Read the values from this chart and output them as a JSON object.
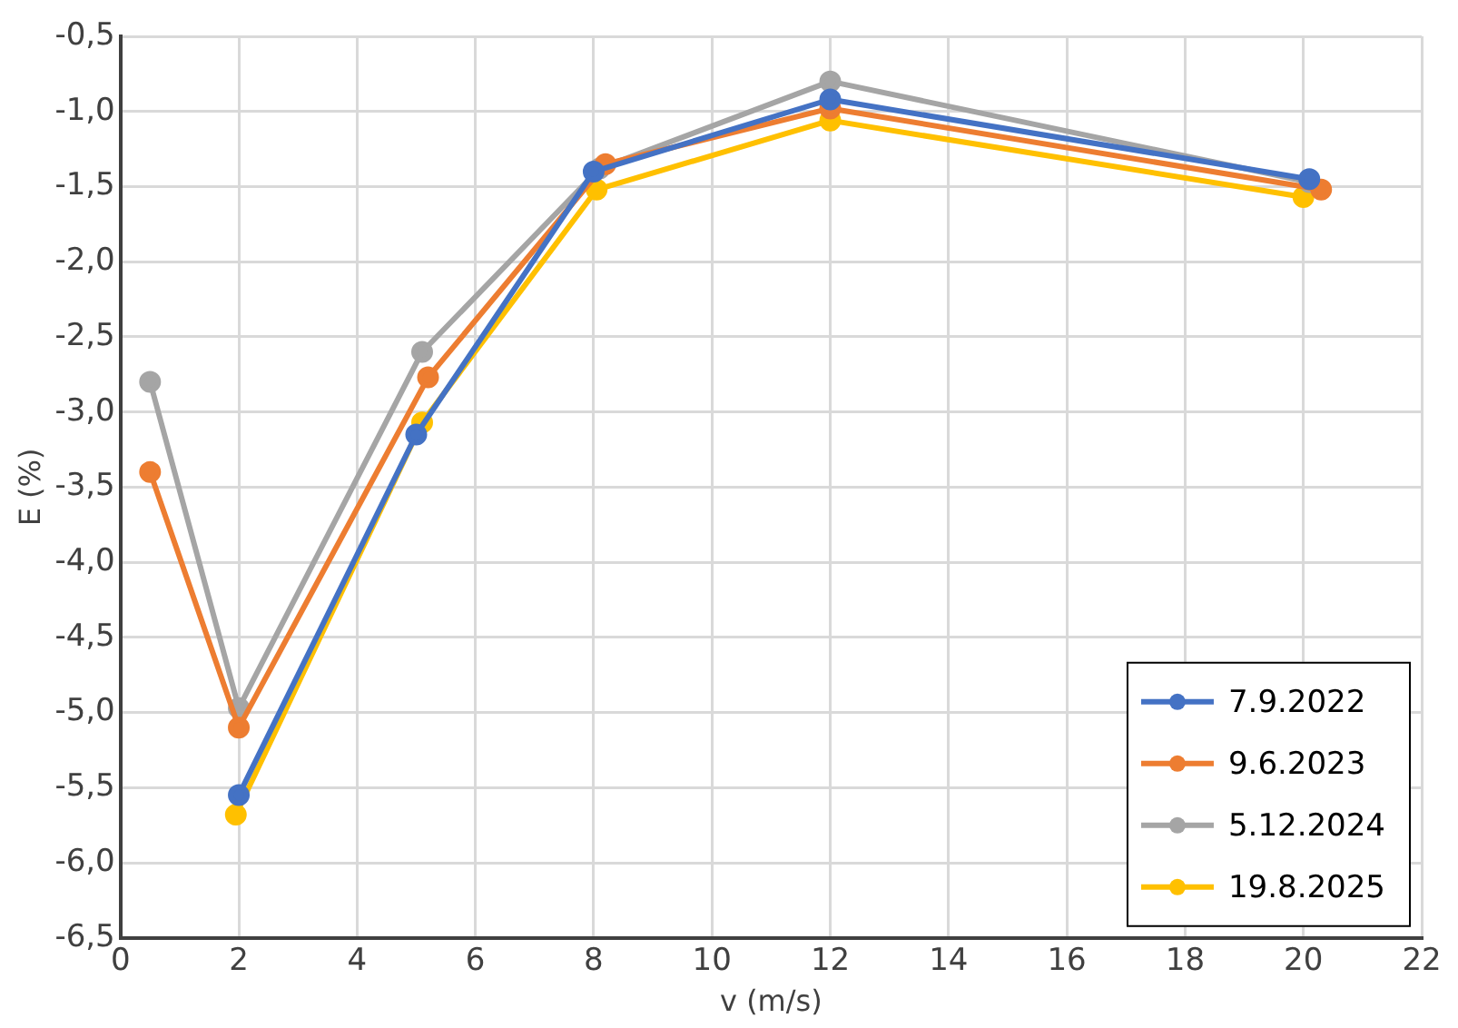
{
  "chart_data": {
    "type": "line",
    "xlabel": "v (m/s)",
    "ylabel": "E (%)",
    "xlim": [
      0,
      22
    ],
    "xticks": [
      0,
      2,
      4,
      6,
      8,
      10,
      12,
      14,
      16,
      18,
      20,
      22
    ],
    "ylim": [
      -6.5,
      -0.5
    ],
    "yticks": [
      {
        "value": -6.5,
        "label": "-6,5"
      },
      {
        "value": -6,
        "label": "-6,0"
      },
      {
        "value": -5.5,
        "label": "-5,5"
      },
      {
        "value": -5,
        "label": "-5,0"
      },
      {
        "value": -4.5,
        "label": "-4,5"
      },
      {
        "value": -4,
        "label": "-4,0"
      },
      {
        "value": -3.5,
        "label": "-3,5"
      },
      {
        "value": -3,
        "label": "-3,0"
      },
      {
        "value": -2.5,
        "label": "-2,5"
      },
      {
        "value": -2,
        "label": "-2,0"
      },
      {
        "value": -1.5,
        "label": "-1,5"
      },
      {
        "value": -1,
        "label": "-1,0"
      },
      {
        "value": -0.5,
        "label": "-0,5"
      }
    ],
    "grid": true,
    "legend": "bottom right",
    "marker": "circle",
    "line_style": "solid",
    "series": [
      {
        "name": "7.9.2022",
        "color": "#4472c4",
        "x": [
          2,
          5,
          8,
          12,
          20.1
        ],
        "values": [
          -5.55,
          -3.15,
          -1.4,
          -0.92,
          -1.45
        ]
      },
      {
        "name": "9.6.2023",
        "color": "#ed7d31",
        "x": [
          0.5,
          2,
          5.2,
          8.2,
          12,
          20.3
        ],
        "values": [
          -3.4,
          -5.1,
          -2.77,
          -1.35,
          -0.98,
          -1.52
        ]
      },
      {
        "name": "5.12.2024",
        "color": "#a5a5a5",
        "x": [
          0.5,
          2,
          5.1,
          8.1,
          12,
          20.1
        ],
        "values": [
          -2.8,
          -4.97,
          -2.6,
          -1.38,
          -0.8,
          -1.47
        ]
      },
      {
        "name": "19.8.2025",
        "color": "#ffc000",
        "x": [
          1.95,
          5.1,
          8.05,
          12,
          20
        ],
        "values": [
          -5.68,
          -3.07,
          -1.52,
          -1.06,
          -1.57
        ]
      }
    ]
  }
}
